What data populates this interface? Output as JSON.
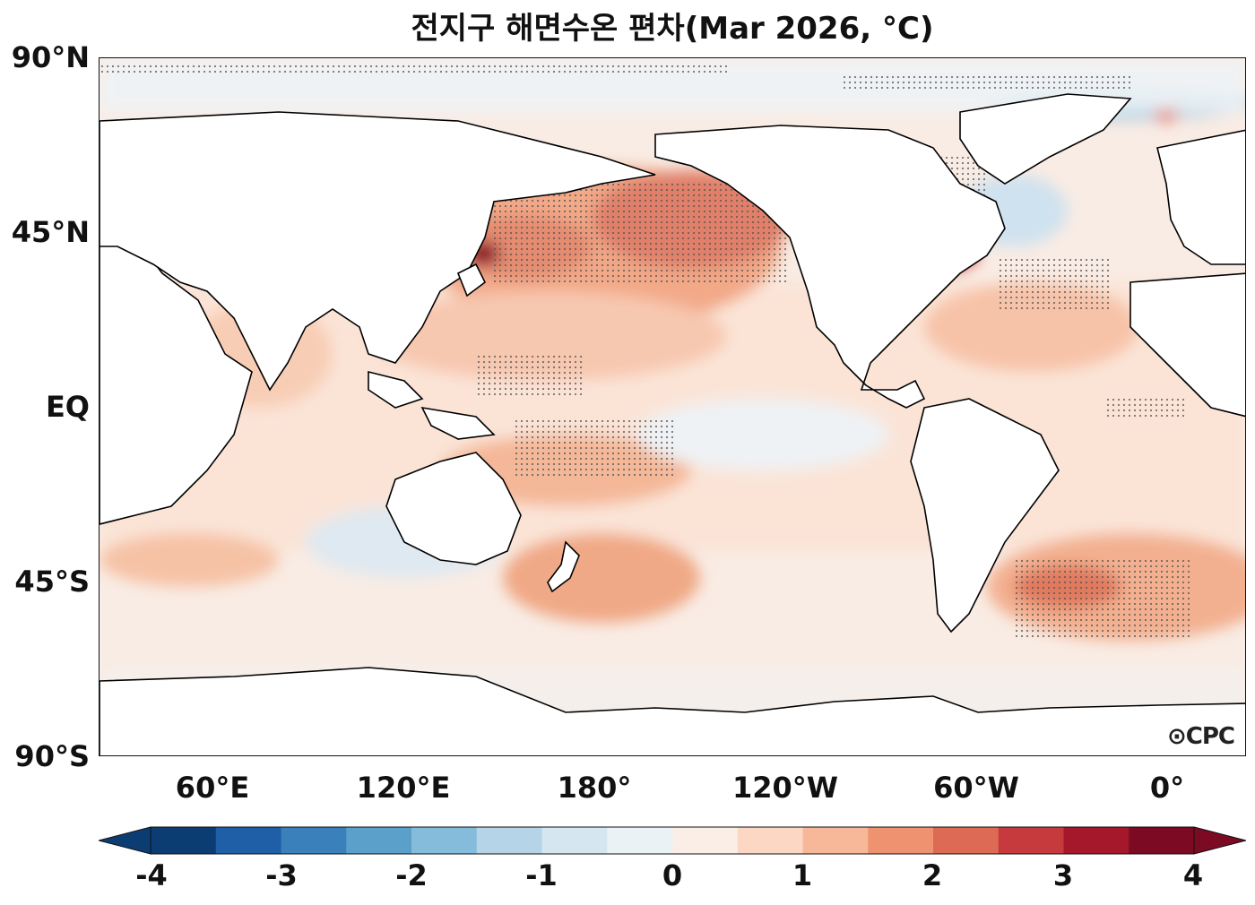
{
  "title": "전지구 해면수온 편차(Mar 2026, °C)",
  "map": {
    "lat_labels": [
      "90°N",
      "45°N",
      "EQ",
      "45°S",
      "90°S"
    ],
    "lon_labels": [
      "60°E",
      "120°E",
      "180°",
      "120°W",
      "60°W",
      "0°"
    ],
    "logo_text": "CPC",
    "colors": {
      "land": "#ffffff",
      "coast": "#000000",
      "ocean_neutral": "#f9ece4"
    }
  },
  "colorbar": {
    "tick_labels": [
      "-4",
      "-3",
      "-2",
      "-1",
      "0",
      "1",
      "2",
      "3",
      "4"
    ],
    "colors": [
      "#0b3d73",
      "#1f5fa8",
      "#3a80ba",
      "#5aa0cb",
      "#86bcdb",
      "#b5d4e8",
      "#d5e6f1",
      "#eaf2f6",
      "#faeee6",
      "#fcd8c4",
      "#f7b89a",
      "#ee9270",
      "#dd6a55",
      "#c6393c",
      "#a5172b",
      "#7c0a22"
    ]
  }
}
